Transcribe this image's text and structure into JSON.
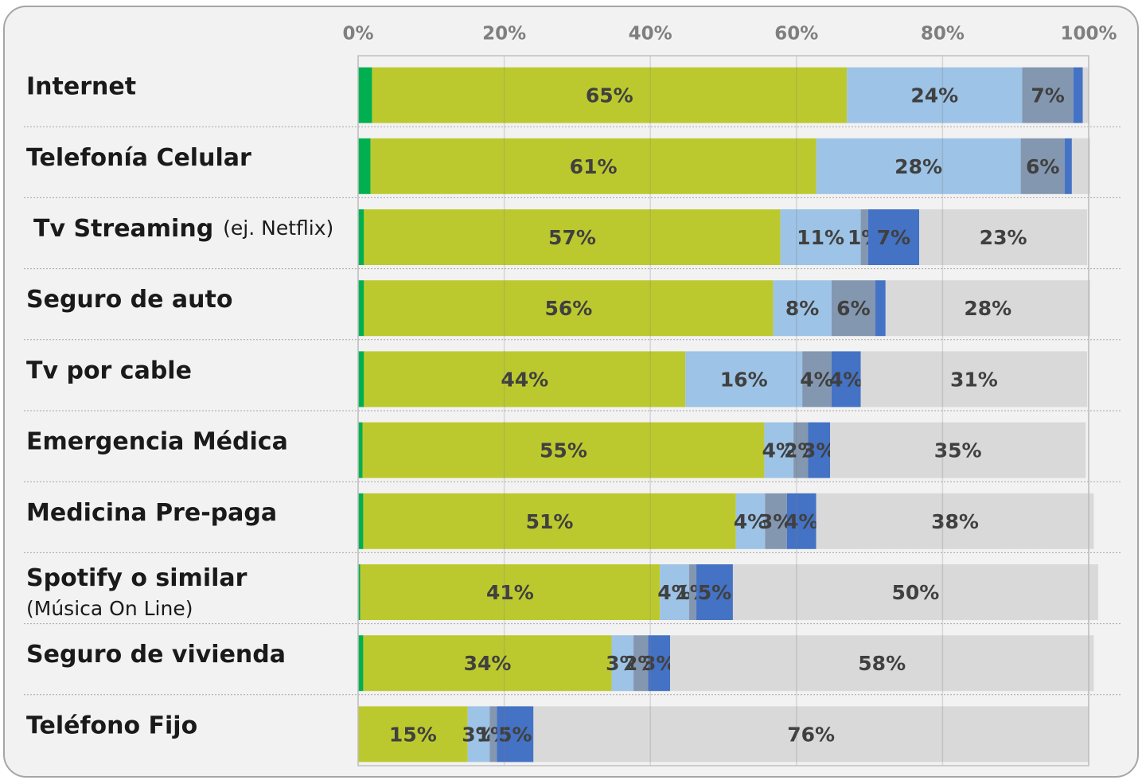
{
  "chart_data": {
    "type": "stacked-bar-horizontal",
    "categories": [
      "Internet",
      "Telefonía Celular",
      "Tv Streaming",
      "Seguro de auto",
      "Tv por cable",
      "Emergencia Médica",
      "Medicina Pre-paga",
      "Spotify o similar",
      "Seguro de vivienda",
      "Teléfono Fijo"
    ],
    "category_notes": [
      null,
      null,
      "(ej. Netflix)",
      null,
      null,
      null,
      null,
      "(Música On Line)",
      null,
      null
    ],
    "xlim": [
      0,
      100
    ],
    "xticks": [
      {
        "value": 0,
        "label": "0%"
      },
      {
        "value": 20,
        "label": "20%"
      },
      {
        "value": 40,
        "label": "40%"
      },
      {
        "value": 60,
        "label": "60%"
      },
      {
        "value": 80,
        "label": "80%"
      },
      {
        "value": 100,
        "label": "100%"
      }
    ],
    "grid": true,
    "series": [
      {
        "color": "#00b050",
        "values": [
          1.9,
          1.7,
          0.8,
          0.8,
          0.8,
          0.6,
          0.7,
          0.3,
          0.7,
          0
        ]
      },
      {
        "color": "#bcc92e",
        "values": [
          65,
          61,
          57,
          56,
          44,
          55,
          51,
          41,
          34,
          15
        ],
        "value_labels": [
          "65%",
          "61%",
          "57%",
          "56%",
          "44%",
          "55%",
          "51%",
          "41%",
          "34%",
          "15%"
        ]
      },
      {
        "color": "#9dc3e6",
        "values": [
          24,
          28,
          11,
          8,
          16,
          4,
          4,
          4,
          3,
          3
        ],
        "value_labels": [
          "24%",
          "28%",
          "11%",
          "8%",
          "16%",
          "4%",
          "4%",
          "4%",
          "3%",
          "3%"
        ]
      },
      {
        "color": "#8497b0",
        "values": [
          7,
          6,
          1,
          6,
          4,
          2,
          3,
          1,
          2,
          1
        ],
        "value_labels": [
          "7%",
          "6%",
          "1%",
          "6%",
          "4%",
          "2%",
          "3%",
          "1%",
          "2%",
          "1%"
        ]
      },
      {
        "color": "#4472c4",
        "values": [
          1.3,
          1,
          7,
          1.4,
          4,
          3,
          4,
          5,
          3,
          5
        ],
        "value_labels": [
          null,
          null,
          "7%",
          null,
          "4%",
          "3%",
          "4%",
          "5%",
          "3%",
          "5%"
        ]
      },
      {
        "color": "#d9d9d9",
        "values": [
          0.8,
          2.5,
          23,
          28,
          31,
          35,
          38,
          50,
          58,
          76
        ],
        "value_labels": [
          null,
          null,
          "23%",
          "28%",
          "31%",
          "35%",
          "38%",
          "50%",
          "58%",
          "76%"
        ]
      }
    ]
  }
}
